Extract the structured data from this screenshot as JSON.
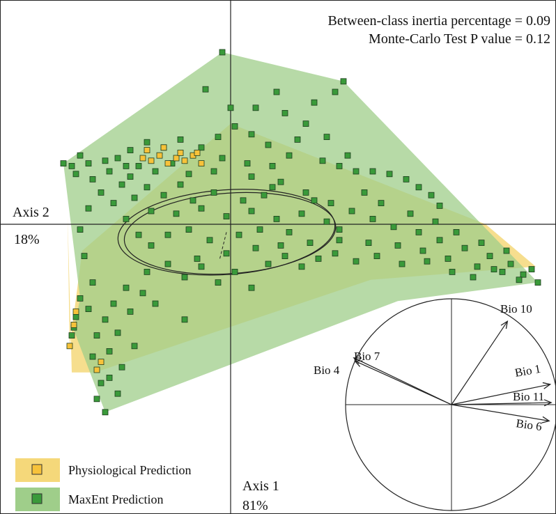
{
  "chart_data": {
    "type": "scatter",
    "title": "",
    "annotations": {
      "between_class": "Between-class inertia percentage = 0.09",
      "monte_carlo": "Monte-Carlo Test P value = 0.12"
    },
    "axis1": {
      "label": "Axis 1",
      "percent": "81%"
    },
    "axis2": {
      "label": "Axis 2",
      "percent": "18%"
    },
    "grid": false,
    "legend_position": "bottom-left",
    "series": [
      {
        "name": "Physiological Prediction",
        "color": "#f7c23a",
        "hull_color": "#f5d87a",
        "marker": "square",
        "hull": [
          [
            -3.9,
            0.3
          ],
          [
            -3.85,
            -4.6
          ],
          [
            -3.55,
            -1.0
          ],
          [
            0,
            3.8
          ],
          [
            6.1,
            0
          ],
          [
            7.3,
            -1.6
          ],
          [
            3.35,
            -2.1
          ],
          [
            -3.25,
            -5.6
          ],
          [
            -3.8,
            -5.6
          ]
        ],
        "points": [
          [
            -2.1,
            2.5
          ],
          [
            -1.9,
            2.4
          ],
          [
            -1.7,
            2.6
          ],
          [
            -1.5,
            2.3
          ],
          [
            -1.3,
            2.5
          ],
          [
            -1.1,
            2.4
          ],
          [
            -0.9,
            2.6
          ],
          [
            -0.7,
            2.3
          ],
          [
            -2.0,
            2.8
          ],
          [
            -1.6,
            2.9
          ],
          [
            -1.2,
            2.7
          ],
          [
            -0.8,
            2.7
          ],
          [
            -3.85,
            -4.6
          ],
          [
            -3.75,
            -3.8
          ],
          [
            -3.7,
            -3.3
          ],
          [
            -3.2,
            -5.5
          ],
          [
            -3.1,
            -5.2
          ]
        ]
      },
      {
        "name": "MaxEnt Prediction",
        "color": "#3a9a3a",
        "hull_color": "#9fce8a",
        "marker": "square",
        "hull": [
          [
            -0.2,
            6.5
          ],
          [
            2.7,
            5.4
          ],
          [
            7.35,
            -2.2
          ],
          [
            4.0,
            -2.9
          ],
          [
            -3.0,
            -7.1
          ],
          [
            -3.75,
            -4.0
          ],
          [
            -3.6,
            -2.8
          ],
          [
            -4.0,
            2.3
          ],
          [
            -3.55,
            2.8
          ]
        ],
        "centroid": [
          -0.1,
          -0.3
        ],
        "ellipse": {
          "rx": 2.6,
          "ry": 1.6
        },
        "points": [
          [
            -0.2,
            6.5
          ],
          [
            2.7,
            5.4
          ],
          [
            7.35,
            -2.2
          ],
          [
            -3.0,
            -7.1
          ],
          [
            -4.0,
            2.3
          ],
          [
            -3.6,
            2.6
          ],
          [
            -3.4,
            2.3
          ],
          [
            -3.6,
            -2.8
          ],
          [
            -3.75,
            -3.9
          ],
          [
            -3.7,
            -3.5
          ],
          [
            -3.8,
            -4.2
          ],
          [
            -1.1,
            -3.6
          ],
          [
            2.0,
            4.6
          ],
          [
            2.5,
            5.0
          ],
          [
            1.1,
            5.0
          ],
          [
            -0.6,
            5.1
          ],
          [
            -2.2,
            2.2
          ],
          [
            -2.4,
            1.8
          ],
          [
            -1.8,
            2.0
          ],
          [
            -1.0,
            1.9
          ],
          [
            -0.4,
            2.0
          ],
          [
            0.5,
            1.8
          ],
          [
            1.2,
            1.6
          ],
          [
            1.8,
            1.2
          ],
          [
            2.4,
            0.8
          ],
          [
            2.9,
            0.5
          ],
          [
            3.4,
            0.2
          ],
          [
            3.9,
            -0.1
          ],
          [
            4.5,
            -0.3
          ],
          [
            5.0,
            -0.6
          ],
          [
            5.6,
            -0.9
          ],
          [
            6.2,
            -1.2
          ],
          [
            6.7,
            -1.5
          ],
          [
            7.0,
            -1.9
          ],
          [
            6.5,
            -1.8
          ],
          [
            5.9,
            -1.6
          ],
          [
            5.2,
            -1.3
          ],
          [
            4.6,
            -1.0
          ],
          [
            4.0,
            -0.8
          ],
          [
            3.3,
            -0.7
          ],
          [
            2.6,
            -0.6
          ],
          [
            1.9,
            -0.7
          ],
          [
            1.2,
            -0.8
          ],
          [
            0.6,
            -0.9
          ],
          [
            -0.1,
            -1.1
          ],
          [
            -0.8,
            -1.3
          ],
          [
            -1.5,
            -1.5
          ],
          [
            -2.0,
            -1.8
          ],
          [
            -2.5,
            -2.4
          ],
          [
            -2.8,
            -3.0
          ],
          [
            -3.0,
            -3.6
          ],
          [
            -3.2,
            -4.2
          ],
          [
            -2.9,
            -4.8
          ],
          [
            -2.6,
            -5.4
          ],
          [
            -3.1,
            -6.0
          ],
          [
            -3.3,
            -5.0
          ],
          [
            -3.4,
            -3.2
          ],
          [
            -3.3,
            -2.2
          ],
          [
            -3.5,
            -1.2
          ],
          [
            -3.6,
            -0.2
          ],
          [
            -3.4,
            0.6
          ],
          [
            -3.1,
            1.2
          ],
          [
            -2.8,
            0.8
          ],
          [
            -2.5,
            0.2
          ],
          [
            -2.2,
            -0.4
          ],
          [
            -1.9,
            0.5
          ],
          [
            -1.6,
            1.1
          ],
          [
            -1.3,
            0.4
          ],
          [
            -1.0,
            -0.2
          ],
          [
            -0.7,
            0.6
          ],
          [
            -0.4,
            1.2
          ],
          [
            -0.1,
            0.3
          ],
          [
            0.2,
            -0.4
          ],
          [
            0.5,
            0.5
          ],
          [
            0.8,
            1.1
          ],
          [
            1.1,
            0.2
          ],
          [
            1.4,
            -0.3
          ],
          [
            1.7,
            0.4
          ],
          [
            2.0,
            0.9
          ],
          [
            2.3,
            0.1
          ],
          [
            2.6,
            -0.2
          ],
          [
            2.2,
            2.4
          ],
          [
            2.6,
            2.2
          ],
          [
            3.0,
            2.0
          ],
          [
            3.4,
            2.0
          ],
          [
            3.8,
            1.9
          ],
          [
            4.2,
            1.7
          ],
          [
            4.5,
            1.4
          ],
          [
            4.8,
            1.1
          ],
          [
            5.0,
            0.7
          ],
          [
            1.6,
            3.2
          ],
          [
            1.8,
            3.8
          ],
          [
            1.4,
            2.6
          ],
          [
            0.9,
            3.0
          ],
          [
            0.5,
            3.4
          ],
          [
            0.1,
            3.7
          ],
          [
            -0.3,
            3.3
          ],
          [
            -0.7,
            2.9
          ],
          [
            -1.2,
            3.2
          ],
          [
            -1.6,
            2.9
          ],
          [
            -2.0,
            3.1
          ],
          [
            -2.4,
            2.8
          ],
          [
            -2.7,
            2.5
          ],
          [
            -2.6,
            1.5
          ],
          [
            -2.3,
            1.0
          ],
          [
            -1.9,
            -0.8
          ],
          [
            -1.5,
            -0.4
          ],
          [
            -1.1,
            -2.0
          ],
          [
            -0.7,
            -1.6
          ],
          [
            -0.3,
            -2.2
          ],
          [
            0.1,
            -1.8
          ],
          [
            0.5,
            -2.4
          ],
          [
            0.9,
            -1.5
          ],
          [
            1.3,
            -1.2
          ],
          [
            1.7,
            -1.6
          ],
          [
            2.1,
            -1.3
          ],
          [
            2.5,
            -1.1
          ],
          [
            3.0,
            -1.4
          ],
          [
            3.5,
            -1.2
          ],
          [
            4.1,
            -1.5
          ],
          [
            4.7,
            -1.4
          ],
          [
            5.3,
            -1.8
          ],
          [
            5.8,
            -2.0
          ],
          [
            6.3,
            -1.7
          ],
          [
            6.9,
            -2.1
          ],
          [
            7.2,
            -1.7
          ],
          [
            -2.4,
            -3.3
          ],
          [
            -2.1,
            -2.6
          ],
          [
            -1.8,
            -3.0
          ],
          [
            -2.7,
            -4.1
          ],
          [
            -2.3,
            -4.6
          ],
          [
            -2.9,
            -5.8
          ],
          [
            -2.7,
            -6.4
          ],
          [
            -3.2,
            -6.6
          ],
          [
            -0.9,
            0.9
          ],
          [
            -0.5,
            -0.6
          ],
          [
            0.3,
            0.9
          ],
          [
            0.7,
            -0.2
          ],
          [
            1.0,
            1.4
          ],
          [
            -1.2,
            1.5
          ],
          [
            -2.0,
            1.4
          ],
          [
            -2.9,
            2.0
          ],
          [
            -3.3,
            1.7
          ],
          [
            -3.7,
            1.9
          ],
          [
            -3.8,
            2.2
          ],
          [
            0.0,
            4.4
          ],
          [
            0.6,
            4.4
          ],
          [
            1.3,
            4.2
          ],
          [
            2.3,
            3.3
          ],
          [
            2.8,
            2.6
          ],
          [
            3.2,
            1.2
          ],
          [
            3.6,
            0.8
          ],
          [
            4.3,
            0.4
          ],
          [
            4.9,
            0.1
          ],
          [
            5.4,
            -0.3
          ],
          [
            6.0,
            -0.7
          ],
          [
            6.6,
            -1.0
          ],
          [
            -0.2,
            2.5
          ],
          [
            0.4,
            2.3
          ],
          [
            1.0,
            2.2
          ],
          [
            -1.4,
            2.3
          ],
          [
            -2.5,
            2.2
          ],
          [
            -3.0,
            2.4
          ]
        ]
      }
    ],
    "biplot": {
      "vectors": [
        {
          "label": "Bio 10",
          "x": 0.55,
          "y": 0.82
        },
        {
          "label": "Bio 1",
          "x": 0.97,
          "y": 0.2
        },
        {
          "label": "Bio 11",
          "x": 0.98,
          "y": 0.02
        },
        {
          "label": "Bio 6",
          "x": 0.96,
          "y": -0.16
        },
        {
          "label": "Bio 7",
          "x": -0.96,
          "y": 0.46
        },
        {
          "label": "Bio 4",
          "x": -0.95,
          "y": 0.43
        }
      ]
    }
  }
}
